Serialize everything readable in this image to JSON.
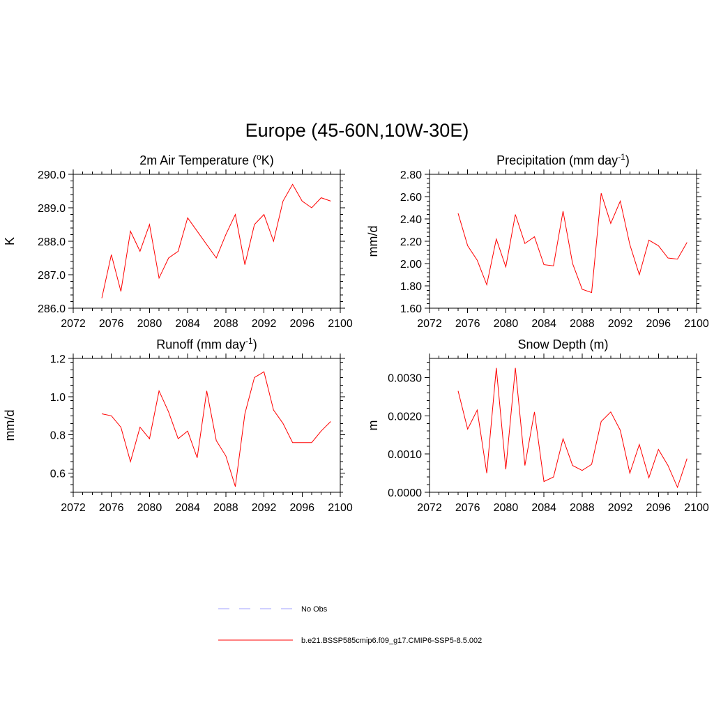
{
  "title": "Europe (45-60N,10W-30E)",
  "chart_data": [
    {
      "type": "line",
      "title_main": "2m Air Temperature (",
      "title_sup": "o",
      "title_rest": "K)",
      "ylabel": "K",
      "xlim": [
        2072,
        2100
      ],
      "ylim": [
        286.0,
        290.0
      ],
      "xticks": [
        2072,
        2076,
        2080,
        2084,
        2088,
        2092,
        2096,
        2100
      ],
      "yticks": [
        286.0,
        287.0,
        288.0,
        289.0,
        290.0
      ],
      "ytick_labels": [
        "286.0",
        "287.0",
        "288.0",
        "289.0",
        "290.0"
      ],
      "x": [
        2075,
        2076,
        2077,
        2078,
        2079,
        2080,
        2081,
        2082,
        2083,
        2084,
        2085,
        2086,
        2087,
        2088,
        2089,
        2090,
        2091,
        2092,
        2093,
        2094,
        2095,
        2096,
        2097,
        2098,
        2099
      ],
      "series": [
        {
          "color": "#ff0000",
          "values": [
            286.3,
            287.6,
            286.5,
            288.3,
            287.7,
            288.5,
            286.9,
            287.5,
            287.7,
            288.7,
            288.3,
            287.9,
            287.5,
            288.2,
            288.8,
            287.3,
            288.5,
            288.8,
            288.0,
            289.2,
            289.7,
            289.2,
            289.0,
            289.3,
            289.2
          ]
        }
      ]
    },
    {
      "type": "line",
      "title_main": "Precipitation (mm day",
      "title_sup": "-1",
      "title_rest": ")",
      "ylabel": "mm/d",
      "xlim": [
        2072,
        2100
      ],
      "ylim": [
        1.6,
        2.8
      ],
      "xticks": [
        2072,
        2076,
        2080,
        2084,
        2088,
        2092,
        2096,
        2100
      ],
      "yticks": [
        1.6,
        1.8,
        2.0,
        2.2,
        2.4,
        2.6,
        2.8
      ],
      "ytick_labels": [
        "1.60",
        "1.80",
        "2.00",
        "2.20",
        "2.40",
        "2.60",
        "2.80"
      ],
      "x": [
        2075,
        2076,
        2077,
        2078,
        2079,
        2080,
        2081,
        2082,
        2083,
        2084,
        2085,
        2086,
        2087,
        2088,
        2089,
        2090,
        2091,
        2092,
        2093,
        2094,
        2095,
        2096,
        2097,
        2098,
        2099
      ],
      "series": [
        {
          "color": "#ff0000",
          "values": [
            2.45,
            2.16,
            2.03,
            1.81,
            2.22,
            1.97,
            2.44,
            2.18,
            2.24,
            1.99,
            1.98,
            2.47,
            2.0,
            1.77,
            1.74,
            2.63,
            2.36,
            2.56,
            2.17,
            1.9,
            2.21,
            2.16,
            2.05,
            2.04,
            2.19
          ]
        }
      ]
    },
    {
      "type": "line",
      "title_main": "Runoff (mm day",
      "title_sup": "-1",
      "title_rest": ")",
      "ylabel": "mm/d",
      "xlim": [
        2072,
        2100
      ],
      "ylim": [
        0.5,
        1.2
      ],
      "xticks": [
        2072,
        2076,
        2080,
        2084,
        2088,
        2092,
        2096,
        2100
      ],
      "yticks": [
        0.6,
        0.8,
        1.0,
        1.2
      ],
      "ytick_labels": [
        "0.6",
        "0.8",
        "1.0",
        "1.2"
      ],
      "x": [
        2075,
        2076,
        2077,
        2078,
        2079,
        2080,
        2081,
        2082,
        2083,
        2084,
        2085,
        2086,
        2087,
        2088,
        2089,
        2090,
        2091,
        2092,
        2093,
        2094,
        2095,
        2096,
        2097,
        2098,
        2099
      ],
      "series": [
        {
          "color": "#ff0000",
          "values": [
            0.91,
            0.9,
            0.84,
            0.66,
            0.84,
            0.78,
            1.03,
            0.92,
            0.78,
            0.82,
            0.68,
            1.03,
            0.77,
            0.69,
            0.53,
            0.91,
            1.1,
            1.13,
            0.93,
            0.86,
            0.76,
            0.76,
            0.76,
            0.82,
            0.87
          ]
        }
      ]
    },
    {
      "type": "line",
      "title_main": "Snow Depth (m)",
      "title_sup": "",
      "title_rest": "",
      "ylabel": "m",
      "xlim": [
        2072,
        2100
      ],
      "ylim": [
        0.0,
        0.0035
      ],
      "xticks": [
        2072,
        2076,
        2080,
        2084,
        2088,
        2092,
        2096,
        2100
      ],
      "yticks": [
        0.0,
        0.001,
        0.002,
        0.003
      ],
      "ytick_labels": [
        "0.0000",
        "0.0010",
        "0.0020",
        "0.0030"
      ],
      "x": [
        2075,
        2076,
        2077,
        2078,
        2079,
        2080,
        2081,
        2082,
        2083,
        2084,
        2085,
        2086,
        2087,
        2088,
        2089,
        2090,
        2091,
        2092,
        2093,
        2094,
        2095,
        2096,
        2097,
        2098,
        2099
      ],
      "series": [
        {
          "color": "#ff0000",
          "values": [
            0.00265,
            0.00165,
            0.00215,
            0.0005,
            0.00325,
            0.0006,
            0.00325,
            0.0007,
            0.0021,
            0.00028,
            0.0004,
            0.0014,
            0.0007,
            0.00057,
            0.00073,
            0.00185,
            0.0021,
            0.00162,
            0.0005,
            0.00125,
            0.00038,
            0.00112,
            0.0007,
            0.00013,
            0.00088
          ]
        }
      ]
    }
  ],
  "legend": [
    {
      "label": "No Obs",
      "color": "#a0a0ff",
      "dash": true
    },
    {
      "label": "b.e21.BSSP585cmip6.f09_g17.CMIP6-SSP5-8.5.002",
      "color": "#ff0000",
      "dash": false
    }
  ]
}
